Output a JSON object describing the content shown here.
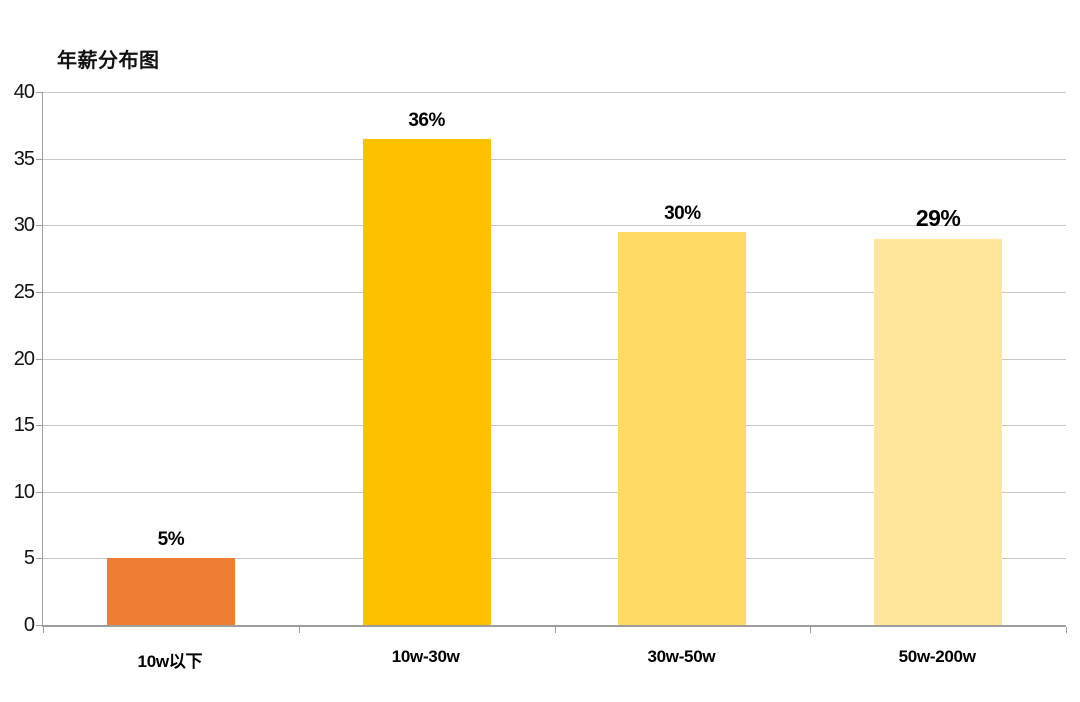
{
  "page": {
    "background_color": "#ffffff"
  },
  "chart_data": {
    "type": "bar",
    "title": "年薪分布图",
    "categories": [
      "10w以下",
      "10w-30w",
      "30w-50w",
      "50w-200w"
    ],
    "values": [
      5,
      36.5,
      29.5,
      29
    ],
    "data_labels": [
      "5%",
      "36%",
      "30%",
      "29%"
    ],
    "data_label_font_px": [
      19,
      19,
      19,
      23
    ],
    "bar_colors": [
      "#ED7D31",
      "#FFC000",
      "#FFD966",
      "#FFE699"
    ],
    "xlabel": "",
    "ylabel": "",
    "ylim": [
      0,
      40
    ],
    "yticks": [
      0,
      5,
      10,
      15,
      20,
      25,
      30,
      35,
      40
    ],
    "grid": true,
    "gridline_color": "#c6c6c6",
    "axis_color": "#9d9d9d",
    "legend": "none"
  }
}
